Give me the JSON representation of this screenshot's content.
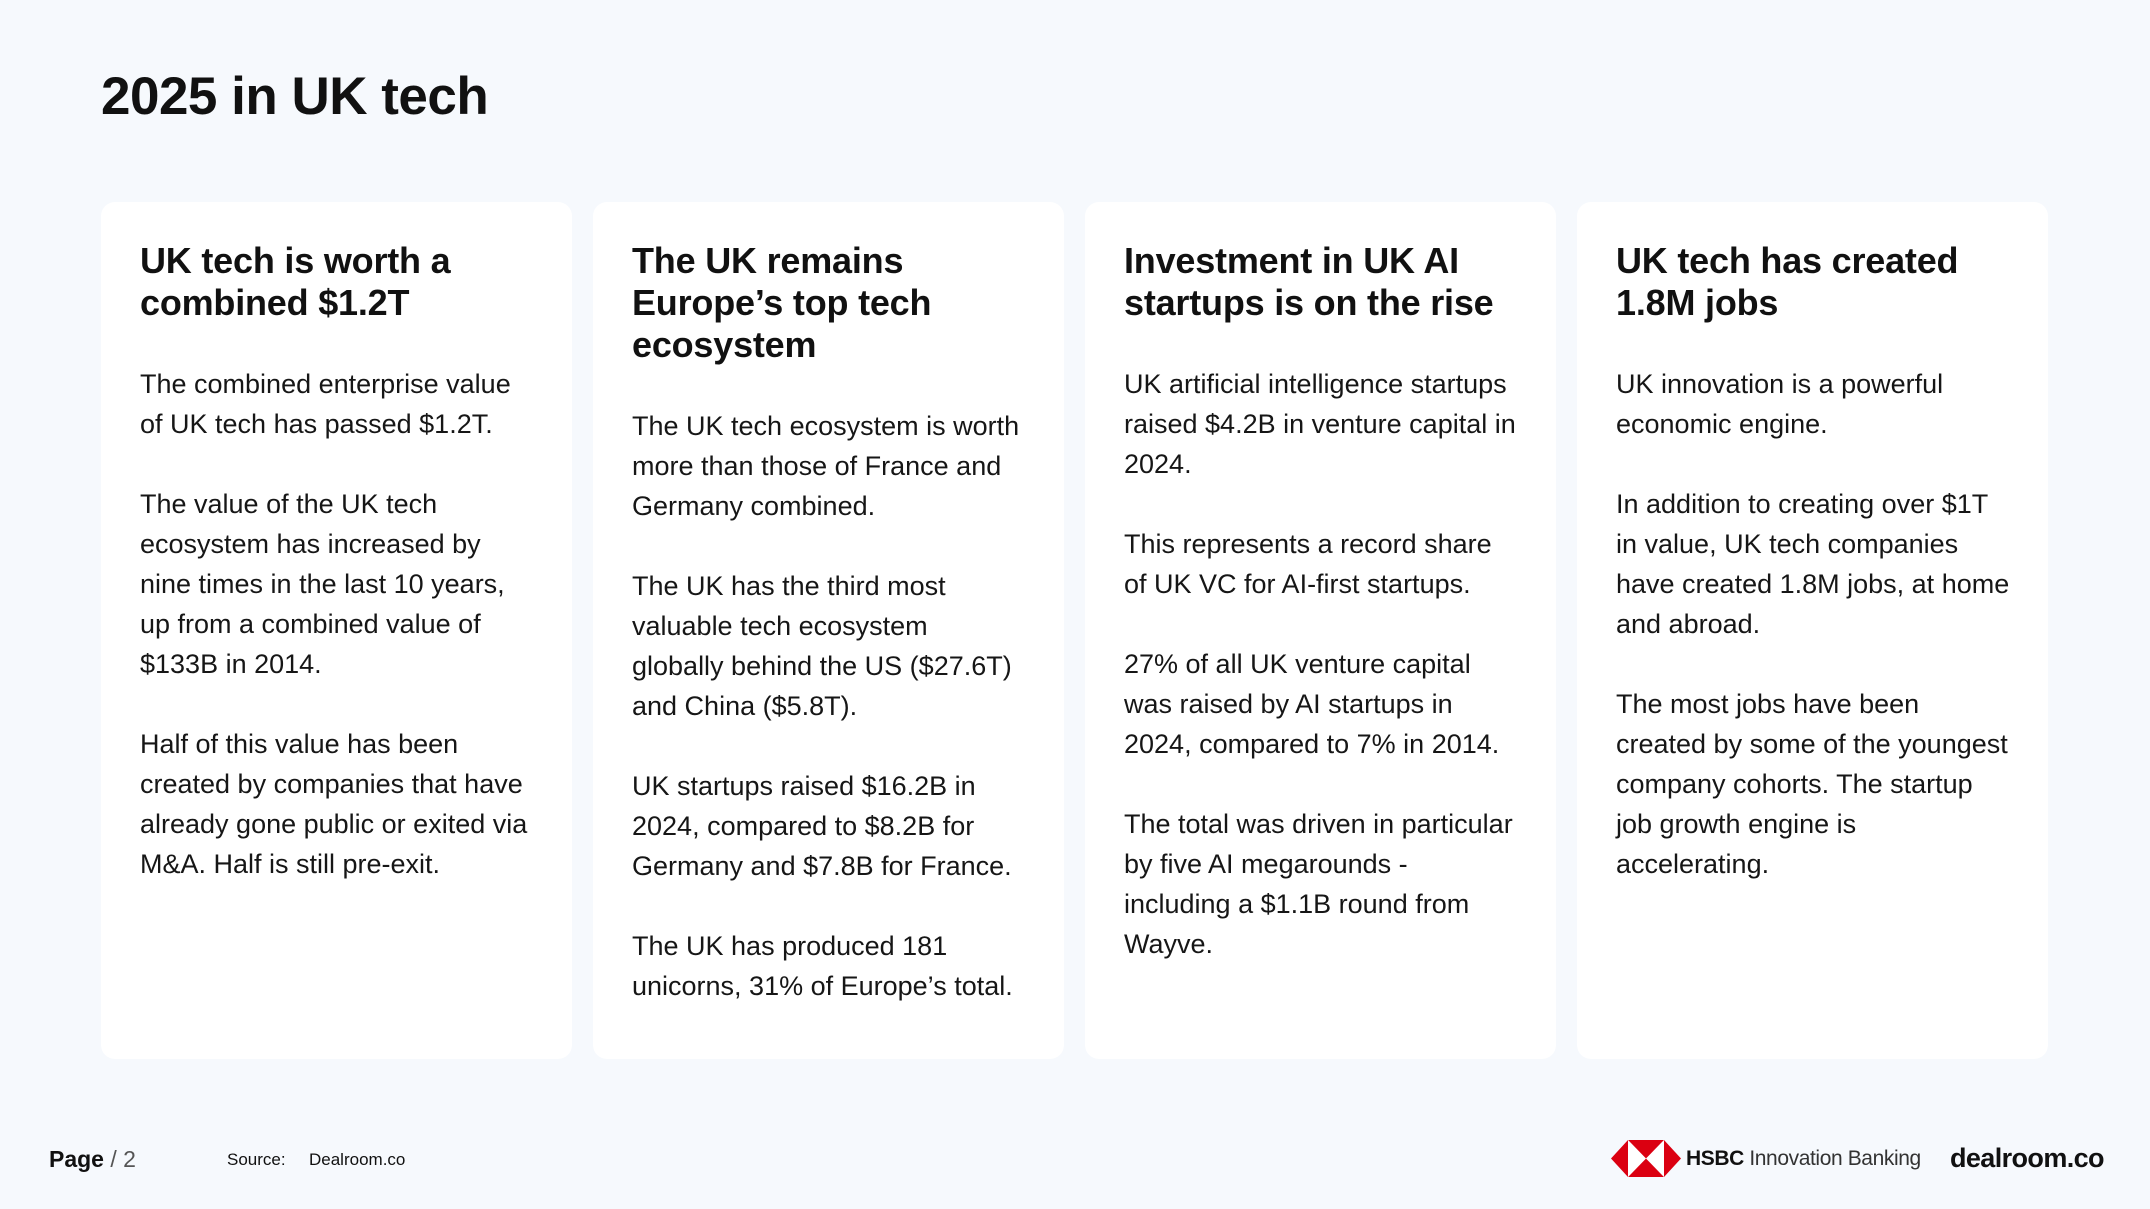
{
  "page": {
    "title": "2025 in UK tech"
  },
  "cards": [
    {
      "title": "UK tech is worth a combined $1.2T",
      "paragraphs": [
        "The combined enterprise value of UK tech has passed $1.2T.",
        "The value of the UK tech ecosystem has increased by nine times in the last 10 years, up from a combined value of $133B in 2014.",
        "Half of this value has been created by companies that have already gone public or exited via M&A. Half is still pre-exit."
      ]
    },
    {
      "title": "The UK remains Europe’s top tech ecosystem",
      "paragraphs": [
        "The UK tech ecosystem is worth more than those of France and Germany combined.",
        "The UK has the third most valuable tech ecosystem globally behind the US ($27.6T) and China ($5.8T).",
        "UK startups raised $16.2B in 2024, compared to $8.2B for Germany and $7.8B for France.",
        "The UK has produced 181 unicorns, 31% of Europe’s total."
      ]
    },
    {
      "title": "Investment in UK AI startups is on the rise",
      "paragraphs": [
        "UK artificial intelligence startups raised $4.2B in venture capital in 2024.",
        "This represents a record share of UK VC for AI-first startups.",
        "27% of all UK venture capital was raised by AI startups in 2024, compared to 7% in 2014.",
        "The total was driven in particular by five AI megarounds - including a $1.1B round from Wayve."
      ]
    },
    {
      "title": "UK tech has created 1.8M jobs",
      "paragraphs": [
        "UK innovation is a powerful economic engine.",
        "In addition to creating over $1T in value, UK tech companies have created 1.8M jobs, at home and abroad.",
        "The most jobs have been created by some of the youngest company cohorts. The startup job growth engine is accelerating."
      ]
    }
  ],
  "footer": {
    "page_word": "Page",
    "page_separator": "/",
    "page_number": "2",
    "source_label": "Source:",
    "source_value": "Dealroom.co",
    "hsbc_brand": "HSBC",
    "hsbc_suffix": "Innovation Banking",
    "dealroom_logo": "dealroom.co"
  },
  "colors": {
    "background": "#f6f9fd",
    "card": "#ffffff",
    "hsbc_red": "#db0011"
  }
}
